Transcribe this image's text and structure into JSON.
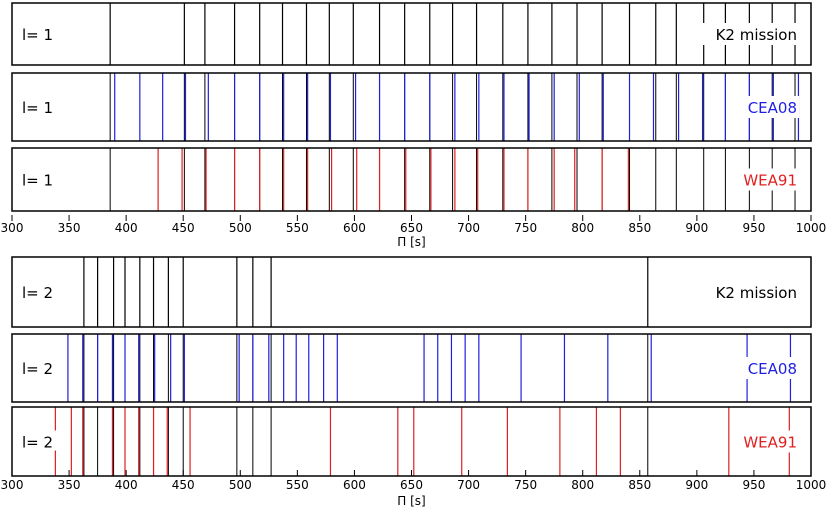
{
  "chart_data": [
    {
      "type": "event-lines",
      "title": "",
      "xlabel": "Π [s]",
      "xlim": [
        300,
        1000
      ],
      "xticks": [
        300,
        350,
        400,
        450,
        500,
        550,
        600,
        650,
        700,
        750,
        800,
        850,
        900,
        950,
        1000
      ],
      "panels": [
        {
          "row_label": "l= 1",
          "source": "K2 mission",
          "color": "#000000",
          "periods": [
            386,
            451,
            469,
            495,
            517,
            537,
            558,
            578,
            599,
            622,
            644,
            666,
            686,
            707,
            730,
            752,
            773,
            795,
            817,
            841,
            864,
            882,
            906,
            925,
            946,
            966,
            986
          ]
        },
        {
          "row_label": "l= 1",
          "source": "CEA08",
          "color": "#1f1fe0",
          "periods": [
            390,
            412,
            432,
            452,
            472,
            495,
            517,
            538,
            559,
            579,
            601,
            622,
            644,
            666,
            688,
            709,
            731,
            753,
            775,
            797,
            818,
            841,
            862,
            884,
            905,
            925,
            946,
            967,
            989
          ],
          "overlay_periods": [
            386,
            451,
            469,
            495,
            517,
            537,
            558,
            578,
            599,
            622,
            644,
            666,
            686,
            707,
            730,
            752,
            773,
            795,
            817,
            841,
            864,
            882,
            906,
            925,
            946,
            966,
            986
          ],
          "overlay_color": "#000000"
        },
        {
          "row_label": "l= 1",
          "source": "WEA91",
          "color": "#e02020",
          "periods": [
            428,
            449,
            470,
            495,
            517,
            538,
            559,
            580,
            602,
            622,
            645,
            667,
            688,
            708,
            731,
            752,
            775,
            793,
            817,
            840
          ],
          "overlay_periods": [
            386,
            451,
            469,
            495,
            517,
            537,
            558,
            578,
            599,
            622,
            644,
            666,
            686,
            707,
            730,
            752,
            773,
            795,
            817,
            841,
            864,
            882,
            906,
            925,
            946,
            966,
            986
          ],
          "overlay_color": "#000000"
        }
      ]
    },
    {
      "type": "event-lines",
      "title": "",
      "xlabel": "Π [s]",
      "xlim": [
        300,
        1000
      ],
      "xticks": [
        300,
        350,
        400,
        450,
        500,
        550,
        600,
        650,
        700,
        750,
        800,
        850,
        900,
        950,
        1000
      ],
      "panels": [
        {
          "row_label": "l= 2",
          "source": "K2 mission",
          "color": "#000000",
          "periods": [
            363,
            375,
            389,
            399,
            412,
            424,
            437,
            450,
            497,
            511,
            527,
            857
          ]
        },
        {
          "row_label": "l= 2",
          "source": "CEA08",
          "color": "#1f1fe0",
          "periods": [
            349,
            362,
            375,
            388,
            399,
            411,
            425,
            439,
            451,
            499,
            511,
            525,
            538,
            549,
            560,
            573,
            585,
            661,
            673,
            685,
            697,
            709,
            746,
            784,
            822,
            860,
            944,
            982
          ],
          "overlay_periods": [
            363,
            375,
            389,
            399,
            412,
            424,
            437,
            450,
            497,
            511,
            527,
            857
          ],
          "overlay_color": "#000000"
        },
        {
          "row_label": "l= 2",
          "source": "WEA91",
          "color": "#e02020",
          "periods": [
            338,
            352,
            362,
            388,
            399,
            411,
            424,
            436,
            456,
            579,
            638,
            652,
            694,
            734,
            780,
            812,
            833,
            928,
            981
          ],
          "overlay_periods": [
            363,
            375,
            389,
            399,
            412,
            424,
            437,
            450,
            497,
            511,
            527,
            857
          ],
          "overlay_color": "#000000"
        }
      ]
    }
  ]
}
